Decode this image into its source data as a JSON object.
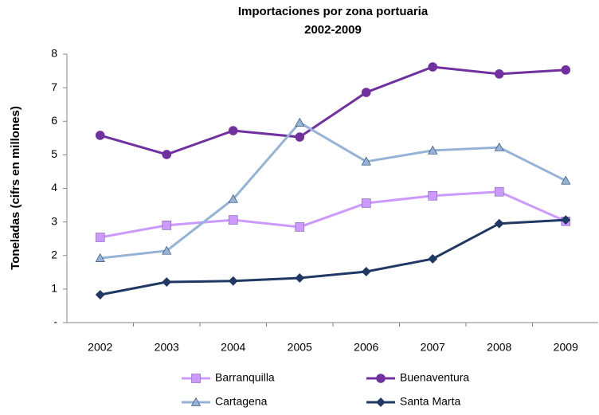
{
  "chart_data": {
    "type": "line",
    "title": "Importaciones por zona portuaria",
    "subtitle": "2002-2009",
    "y_label": "Toneladas  (cifrs en millones)",
    "categories": [
      "2002",
      "2003",
      "2004",
      "2005",
      "2006",
      "2007",
      "2008",
      "2009"
    ],
    "series": [
      {
        "name": "Barranquilla",
        "color": "#cc99ff",
        "marker": "square",
        "values": [
          2.54,
          2.9,
          3.06,
          2.85,
          3.56,
          3.78,
          3.9,
          3.02
        ]
      },
      {
        "name": "Buenaventura",
        "color": "#7030a0",
        "marker": "circle",
        "values": [
          5.58,
          5.01,
          5.72,
          5.53,
          6.86,
          7.62,
          7.41,
          7.53
        ]
      },
      {
        "name": "Cartagena",
        "color": "#95b3d7",
        "marker": "triangle",
        "values": [
          1.92,
          2.14,
          3.68,
          5.96,
          4.8,
          5.13,
          5.22,
          4.23
        ]
      },
      {
        "name": "Santa Marta",
        "color": "#1f3864",
        "marker": "diamond",
        "values": [
          0.83,
          1.21,
          1.24,
          1.33,
          1.52,
          1.9,
          2.95,
          3.06
        ]
      }
    ],
    "ylim": [
      0,
      8
    ],
    "yticks": [
      {
        "value": 0,
        "label": "-"
      },
      1,
      2,
      3,
      4,
      5,
      6,
      7,
      8
    ],
    "grid": false,
    "legend": "bottom"
  }
}
